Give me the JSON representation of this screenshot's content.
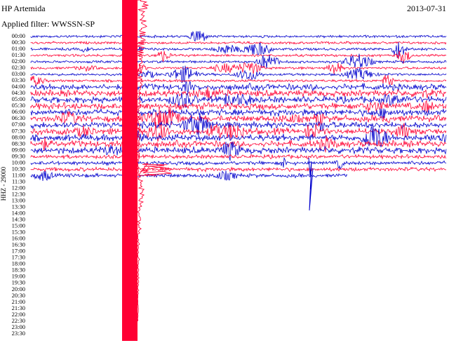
{
  "header": {
    "station": "HP Artemida",
    "date": "2013-07-31",
    "filter": "Applied filter: WWSSN-SP"
  },
  "axis_label": "HHZ - 29000",
  "rows": [
    "00:00",
    "00:30",
    "01:00",
    "01:30",
    "02:00",
    "02:30",
    "03:00",
    "03:30",
    "04:00",
    "04:30",
    "05:00",
    "05:30",
    "06:00",
    "06:30",
    "07:00",
    "07:30",
    "08:00",
    "08:30",
    "09:00",
    "09:30",
    "10:00",
    "10:30",
    "11:00",
    "11:30",
    "12:00",
    "12:30",
    "13:00",
    "13:30",
    "14:00",
    "14:30",
    "15:00",
    "15:30",
    "16:00",
    "16:30",
    "17:00",
    "17:30",
    "18:00",
    "18:30",
    "19:00",
    "19:30",
    "20:00",
    "20:30",
    "21:00",
    "21:30",
    "22:00",
    "22:30",
    "23:00",
    "23:30"
  ],
  "trace_colors": [
    "#0000cc",
    "#ff0033"
  ]
}
